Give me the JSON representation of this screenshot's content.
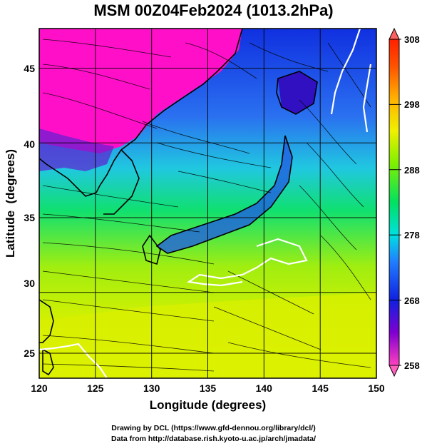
{
  "title": "MSM 00Z04Feb2024 (1013.2hPa)",
  "axes": {
    "xlabel": "Longitude (degrees)",
    "ylabel": "Latitude  (degrees)",
    "xlim": [
      120,
      150
    ],
    "ylim": [
      22.6,
      48
    ],
    "xticks": [
      "120",
      "125",
      "130",
      "135",
      "140",
      "145",
      "150"
    ],
    "yticks": [
      "25",
      "30",
      "35",
      "40",
      "45"
    ]
  },
  "colorbar": {
    "min": 258,
    "max": 308,
    "ticks": [
      "258",
      "268",
      "278",
      "288",
      "298",
      "308"
    ]
  },
  "credits": {
    "line1": "Drawing by DCL (https://www.gfd-dennou.org/library/dcl/)",
    "line2": "Data from http://database.rish.kyoto-u.ac.jp/arch/jmadata/"
  },
  "colors": {
    "cold": "#ff00c8",
    "cool": "#2040ff",
    "mid": "#00e070",
    "warm": "#e0f000",
    "streamline": "#000000",
    "contour": "#ffffff"
  }
}
